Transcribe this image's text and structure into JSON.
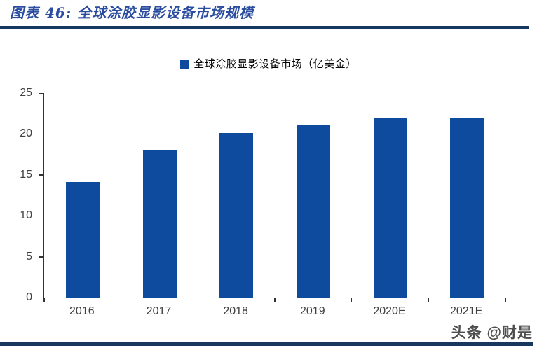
{
  "header": {
    "title": "图表 46:  全球涂胶显影设备市场规模"
  },
  "legend": {
    "label": "全球涂胶显影设备市场（亿美金）"
  },
  "watermark": "头条 @财是",
  "colors": {
    "bar": "#0E4A9D",
    "title_text": "#2B4DA0",
    "rule": "#17375E",
    "axis": "#333333",
    "tick_label": "#404040"
  },
  "chart_data": {
    "type": "bar",
    "title": "全球涂胶显影设备市场规模",
    "categories": [
      "2016",
      "2017",
      "2018",
      "2019",
      "2020E",
      "2021E"
    ],
    "values": [
      14.1,
      18.1,
      20.1,
      21.1,
      22,
      22
    ],
    "series_name": "全球涂胶显影设备市场（亿美金）",
    "xlabel": "",
    "ylabel": "",
    "ylim": [
      0,
      25
    ],
    "ytick_step": 5,
    "grid": false,
    "legend_position": "top-center"
  }
}
